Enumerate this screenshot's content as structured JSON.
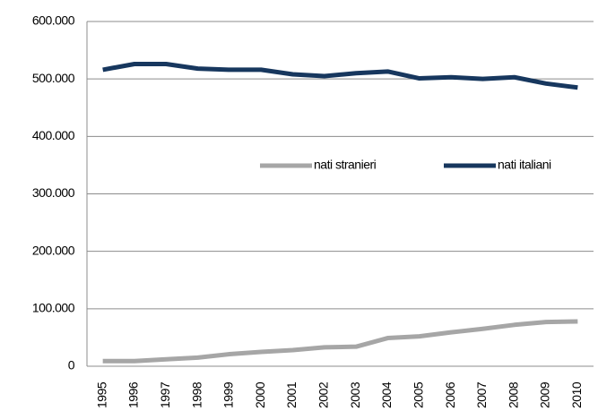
{
  "chart_data": {
    "type": "line",
    "categories": [
      "1995",
      "1996",
      "1997",
      "1998",
      "1999",
      "2000",
      "2001",
      "2002",
      "2003",
      "2004",
      "2005",
      "2006",
      "2007",
      "2008",
      "2009",
      "2010"
    ],
    "series": [
      {
        "name": "nati stranieri",
        "color": "#a6a6a6",
        "values": [
          9000,
          9000,
          12000,
          15000,
          21000,
          25000,
          28000,
          33000,
          34000,
          49000,
          52000,
          59000,
          65000,
          72000,
          77000,
          78000
        ]
      },
      {
        "name": "nati italiani",
        "color": "#17375e",
        "values": [
          516000,
          526000,
          526000,
          518000,
          516000,
          516000,
          508000,
          505000,
          510000,
          513000,
          501000,
          503000,
          500000,
          503000,
          492000,
          485000
        ]
      }
    ],
    "ylim": [
      0,
      600000
    ],
    "yticks": [
      0,
      {
        "value": 100000,
        "label": "100.000"
      },
      {
        "value": 200000,
        "label": "200.000"
      },
      {
        "value": 300000,
        "label": "300.000"
      },
      {
        "value": 400000,
        "label": "400.000"
      },
      {
        "value": 500000,
        "label": "500.000"
      },
      {
        "value": 600000,
        "label": "600.000"
      }
    ],
    "grid": true
  }
}
